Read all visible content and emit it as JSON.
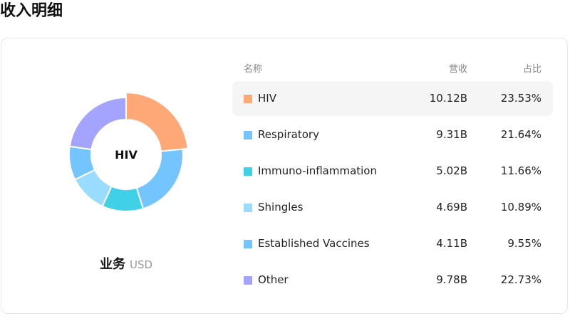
{
  "page": {
    "title": "收入明细"
  },
  "chart_data": {
    "type": "pie",
    "variant": "donut",
    "center_label": "HIV",
    "highlighted": "HIV",
    "caption": "业务",
    "unit": "USD",
    "columns": {
      "name": "名称",
      "revenue": "营收",
      "share": "占比"
    },
    "slices": [
      {
        "name": "HIV",
        "value": 10.12,
        "revenue": "10.12B",
        "share": 23.53,
        "share_label": "23.53%",
        "color": "#FFA877"
      },
      {
        "name": "Respiratory",
        "value": 9.31,
        "revenue": "9.31B",
        "share": 21.64,
        "share_label": "21.64%",
        "color": "#74C5FF"
      },
      {
        "name": "Immuno-inflammation",
        "value": 5.02,
        "revenue": "5.02B",
        "share": 11.66,
        "share_label": "11.66%",
        "color": "#40D0E8"
      },
      {
        "name": "Shingles",
        "value": 4.69,
        "revenue": "4.69B",
        "share": 10.89,
        "share_label": "10.89%",
        "color": "#9ADCFF"
      },
      {
        "name": "Established Vaccines",
        "value": 4.11,
        "revenue": "4.11B",
        "share": 9.55,
        "share_label": "9.55%",
        "color": "#74C5FF"
      },
      {
        "name": "Other",
        "value": 9.78,
        "revenue": "9.78B",
        "share": 22.73,
        "share_label": "22.73%",
        "color": "#A4A4FF"
      }
    ]
  }
}
